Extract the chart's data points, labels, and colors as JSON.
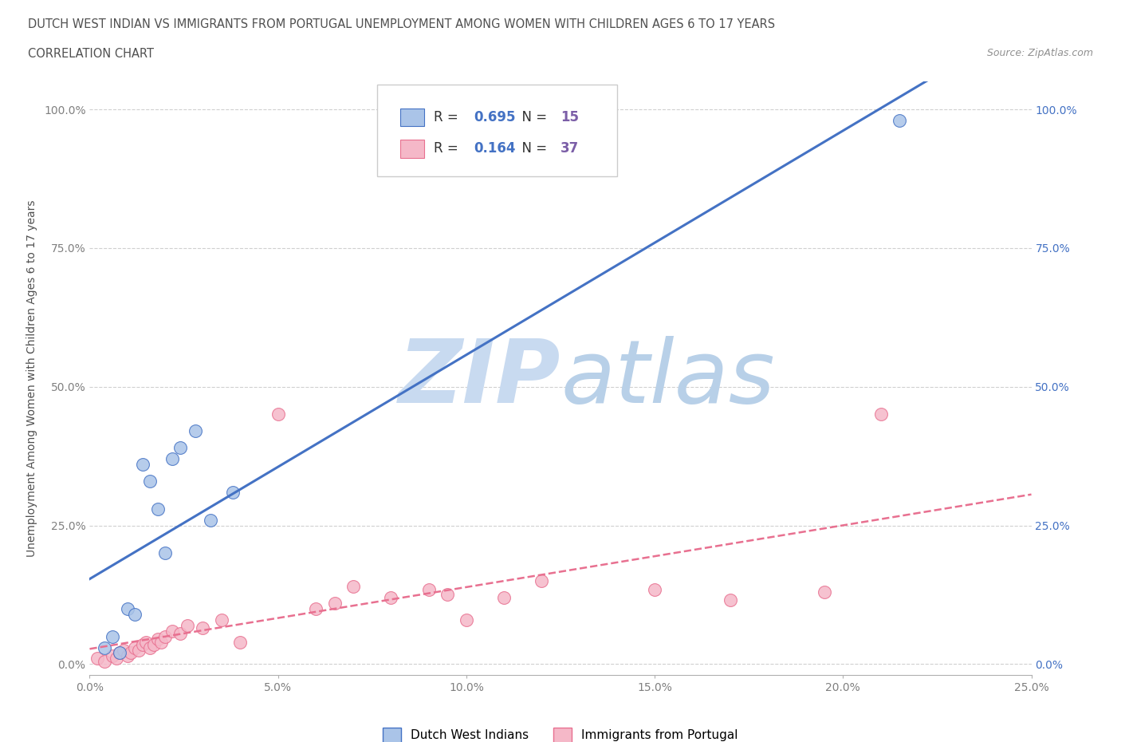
{
  "title_line1": "DUTCH WEST INDIAN VS IMMIGRANTS FROM PORTUGAL UNEMPLOYMENT AMONG WOMEN WITH CHILDREN AGES 6 TO 17 YEARS",
  "title_line2": "CORRELATION CHART",
  "source_text": "Source: ZipAtlas.com",
  "ylabel": "Unemployment Among Women with Children Ages 6 to 17 years",
  "xlim": [
    0.0,
    0.25
  ],
  "ylim": [
    -0.02,
    1.05
  ],
  "xticks": [
    0.0,
    0.05,
    0.1,
    0.15,
    0.2,
    0.25
  ],
  "xticklabels": [
    "0.0%",
    "5.0%",
    "10.0%",
    "15.0%",
    "20.0%",
    "25.0%"
  ],
  "yticks": [
    0.0,
    0.25,
    0.5,
    0.75,
    1.0
  ],
  "yticklabels": [
    "0.0%",
    "25.0%",
    "50.0%",
    "75.0%",
    "100.0%"
  ],
  "watermark_zip": "ZIP",
  "watermark_atlas": "atlas",
  "blue_R": "0.695",
  "blue_N": "15",
  "pink_R": "0.164",
  "pink_N": "37",
  "blue_scatter_x": [
    0.004,
    0.006,
    0.008,
    0.01,
    0.012,
    0.014,
    0.016,
    0.018,
    0.02,
    0.022,
    0.024,
    0.028,
    0.032,
    0.038,
    0.215
  ],
  "blue_scatter_y": [
    0.03,
    0.05,
    0.02,
    0.1,
    0.09,
    0.36,
    0.33,
    0.28,
    0.2,
    0.37,
    0.39,
    0.42,
    0.26,
    0.31,
    0.98
  ],
  "pink_scatter_x": [
    0.002,
    0.004,
    0.006,
    0.007,
    0.008,
    0.009,
    0.01,
    0.011,
    0.012,
    0.013,
    0.014,
    0.015,
    0.016,
    0.017,
    0.018,
    0.019,
    0.02,
    0.022,
    0.024,
    0.026,
    0.03,
    0.035,
    0.04,
    0.05,
    0.06,
    0.065,
    0.07,
    0.08,
    0.09,
    0.095,
    0.1,
    0.11,
    0.12,
    0.15,
    0.17,
    0.195,
    0.21
  ],
  "pink_scatter_y": [
    0.01,
    0.005,
    0.015,
    0.01,
    0.02,
    0.025,
    0.015,
    0.02,
    0.03,
    0.025,
    0.035,
    0.04,
    0.03,
    0.035,
    0.045,
    0.04,
    0.05,
    0.06,
    0.055,
    0.07,
    0.065,
    0.08,
    0.04,
    0.45,
    0.1,
    0.11,
    0.14,
    0.12,
    0.135,
    0.125,
    0.08,
    0.12,
    0.15,
    0.135,
    0.115,
    0.13,
    0.45
  ],
  "blue_color": "#aac4e8",
  "pink_color": "#f5b8c8",
  "blue_line_color": "#4472c4",
  "pink_line_color": "#e87090",
  "pink_line_color2": "#f0a0b0",
  "grid_color": "#d0d0d0",
  "background_color": "#ffffff",
  "legend_label_blue": "Dutch West Indians",
  "legend_label_pink": "Immigrants from Portugal",
  "title_color": "#505050",
  "axis_label_color": "#4472c4",
  "axis_tick_color": "#808080",
  "watermark_color_zip": "#c8daf0",
  "watermark_color_atlas": "#b8d0e8"
}
